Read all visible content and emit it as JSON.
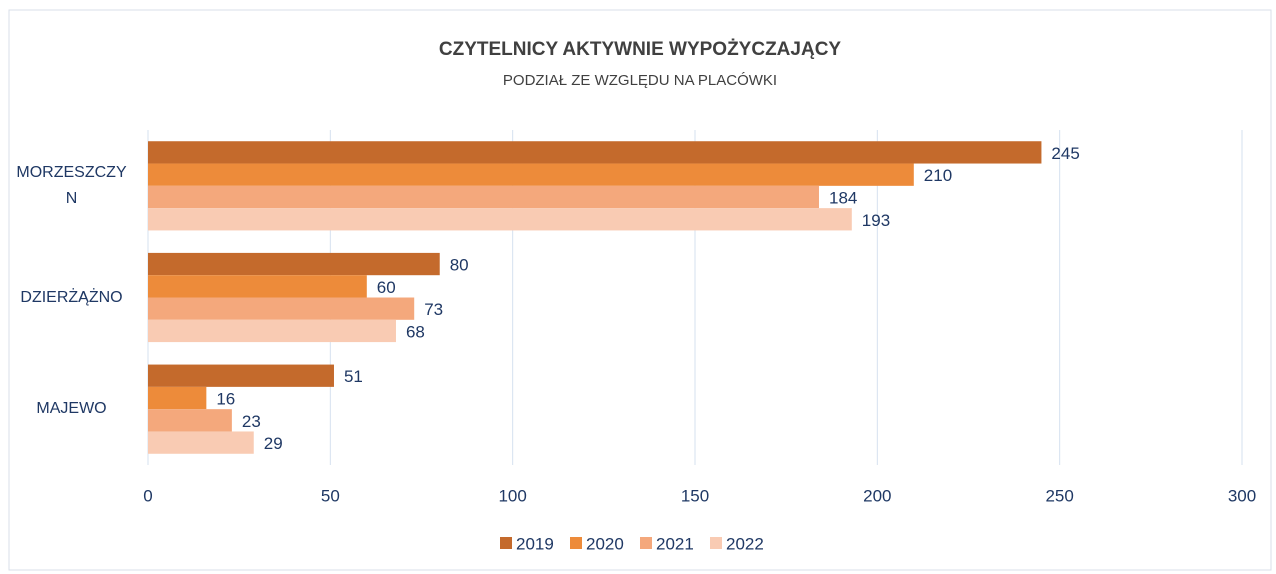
{
  "chart_data": {
    "type": "bar",
    "orientation": "horizontal",
    "title": "CZYTELNICY AKTYWNIE WYPOŻYCZAJĄCY",
    "subtitle": "PODZIAŁ ZE WZGLĘDU NA PLACÓWKI",
    "categories": [
      "MORZESZCZYN",
      "DZIERŻĄŻNO",
      "MAJEWO"
    ],
    "series": [
      {
        "name": "2019",
        "color": "#c46a2c",
        "values": [
          245,
          80,
          51
        ]
      },
      {
        "name": "2020",
        "color": "#ed8b3a",
        "values": [
          210,
          60,
          16
        ]
      },
      {
        "name": "2021",
        "color": "#f4a87c",
        "values": [
          184,
          73,
          23
        ]
      },
      {
        "name": "2022",
        "color": "#f9cbb3",
        "values": [
          193,
          68,
          29
        ]
      }
    ],
    "xlim": [
      0,
      300
    ],
    "xticks": [
      0,
      50,
      100,
      150,
      200,
      250,
      300
    ],
    "grid": true,
    "legend": "bottom"
  }
}
